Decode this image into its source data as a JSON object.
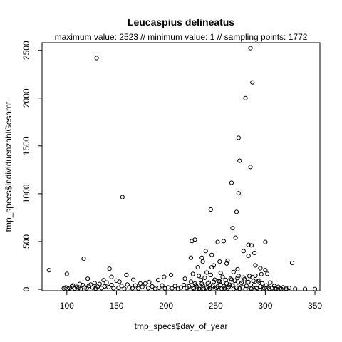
{
  "chart_data": {
    "type": "scatter",
    "title": "Leucaspius delineatus",
    "subtitle": "maximum value: 2523 // minimum value: 1 // sampling points: 1772",
    "xlabel": "tmp_specs$day_of_year",
    "ylabel": "tmp_specs$individuenzahlGesamt",
    "xlim": [
      75,
      355
    ],
    "ylim": [
      -15,
      2580
    ],
    "xticks": [
      100,
      150,
      200,
      250,
      300,
      350
    ],
    "yticks": [
      0,
      500,
      1000,
      1500,
      2000,
      2500
    ],
    "marker": "open-circle",
    "grid": false,
    "points": [
      [
        285,
        2523
      ],
      [
        130,
        2420
      ],
      [
        287,
        2165
      ],
      [
        280,
        2000
      ],
      [
        273,
        1585
      ],
      [
        274,
        1345
      ],
      [
        285,
        1280
      ],
      [
        266,
        1115
      ],
      [
        273,
        1005
      ],
      [
        156,
        965
      ],
      [
        271,
        810
      ],
      [
        245,
        835
      ],
      [
        267,
        640
      ],
      [
        270,
        540
      ],
      [
        229,
        520
      ],
      [
        226,
        505
      ],
      [
        252,
        495
      ],
      [
        300,
        495
      ],
      [
        283,
        465
      ],
      [
        286,
        460
      ],
      [
        258,
        505
      ],
      [
        237,
        290
      ],
      [
        246,
        360
      ],
      [
        261,
        270
      ],
      [
        289,
        380
      ],
      [
        117,
        320
      ],
      [
        82,
        200
      ],
      [
        143,
        215
      ],
      [
        236,
        330
      ],
      [
        225,
        330
      ],
      [
        327,
        275
      ],
      [
        232,
        230
      ],
      [
        240,
        400
      ],
      [
        246,
        230
      ],
      [
        254,
        290
      ],
      [
        262,
        300
      ],
      [
        278,
        400
      ],
      [
        283,
        350
      ],
      [
        290,
        250
      ],
      [
        295,
        220
      ],
      [
        300,
        200
      ],
      [
        268,
        180
      ],
      [
        272,
        210
      ],
      [
        255,
        170
      ],
      [
        248,
        250
      ],
      [
        241,
        175
      ],
      [
        233,
        140
      ],
      [
        227,
        160
      ],
      [
        219,
        110
      ],
      [
        205,
        150
      ],
      [
        198,
        130
      ],
      [
        192,
        95
      ],
      [
        183,
        75
      ],
      [
        174,
        60
      ],
      [
        167,
        100
      ],
      [
        160,
        150
      ],
      [
        153,
        80
      ],
      [
        145,
        130
      ],
      [
        137,
        95
      ],
      [
        128,
        65
      ],
      [
        121,
        110
      ],
      [
        113,
        55
      ],
      [
        106,
        40
      ],
      [
        100,
        160
      ],
      [
        97,
        10
      ],
      [
        99,
        20
      ],
      [
        101,
        5
      ],
      [
        103,
        12
      ],
      [
        105,
        30
      ],
      [
        108,
        8
      ],
      [
        110,
        25
      ],
      [
        112,
        15
      ],
      [
        114,
        3
      ],
      [
        116,
        45
      ],
      [
        118,
        20
      ],
      [
        120,
        10
      ],
      [
        122,
        35
      ],
      [
        124,
        50
      ],
      [
        126,
        18
      ],
      [
        129,
        7
      ],
      [
        131,
        28
      ],
      [
        133,
        55
      ],
      [
        135,
        12
      ],
      [
        138,
        30
      ],
      [
        140,
        70
      ],
      [
        142,
        22
      ],
      [
        145,
        45
      ],
      [
        147,
        10
      ],
      [
        150,
        90
      ],
      [
        152,
        15
      ],
      [
        155,
        35
      ],
      [
        158,
        5
      ],
      [
        161,
        50
      ],
      [
        163,
        20
      ],
      [
        166,
        10
      ],
      [
        169,
        40
      ],
      [
        172,
        8
      ],
      [
        176,
        25
      ],
      [
        179,
        60
      ],
      [
        182,
        12
      ],
      [
        186,
        30
      ],
      [
        189,
        5
      ],
      [
        193,
        15
      ],
      [
        196,
        40
      ],
      [
        199,
        8
      ],
      [
        202,
        20
      ],
      [
        206,
        10
      ],
      [
        209,
        35
      ],
      [
        212,
        5
      ],
      [
        215,
        18
      ],
      [
        218,
        45
      ],
      [
        221,
        12
      ],
      [
        223,
        30
      ],
      [
        225,
        80
      ],
      [
        227,
        15
      ],
      [
        229,
        60
      ],
      [
        231,
        25
      ],
      [
        233,
        5
      ],
      [
        235,
        95
      ],
      [
        237,
        40
      ],
      [
        239,
        120
      ],
      [
        241,
        20
      ],
      [
        243,
        70
      ],
      [
        245,
        150
      ],
      [
        247,
        35
      ],
      [
        249,
        100
      ],
      [
        251,
        15
      ],
      [
        253,
        85
      ],
      [
        255,
        45
      ],
      [
        257,
        130
      ],
      [
        259,
        10
      ],
      [
        261,
        60
      ],
      [
        263,
        25
      ],
      [
        265,
        110
      ],
      [
        267,
        40
      ],
      [
        269,
        90
      ],
      [
        271,
        15
      ],
      [
        273,
        140
      ],
      [
        275,
        55
      ],
      [
        277,
        20
      ],
      [
        279,
        105
      ],
      [
        281,
        35
      ],
      [
        283,
        75
      ],
      [
        285,
        10
      ],
      [
        287,
        125
      ],
      [
        289,
        45
      ],
      [
        291,
        15
      ],
      [
        293,
        85
      ],
      [
        295,
        30
      ],
      [
        297,
        60
      ],
      [
        299,
        10
      ],
      [
        301,
        40
      ],
      [
        303,
        20
      ],
      [
        305,
        70
      ],
      [
        307,
        12
      ],
      [
        309,
        35
      ],
      [
        311,
        5
      ],
      [
        313,
        25
      ],
      [
        315,
        10
      ],
      [
        318,
        20
      ],
      [
        321,
        6
      ],
      [
        324,
        15
      ],
      [
        330,
        4
      ],
      [
        340,
        3
      ],
      [
        350,
        2
      ],
      [
        238,
        5
      ],
      [
        244,
        8
      ],
      [
        250,
        3
      ],
      [
        256,
        6
      ],
      [
        262,
        9
      ],
      [
        268,
        4
      ],
      [
        274,
        7
      ],
      [
        280,
        2
      ],
      [
        286,
        5
      ],
      [
        292,
        8
      ],
      [
        298,
        3
      ],
      [
        304,
        6
      ],
      [
        310,
        9
      ],
      [
        316,
        4
      ],
      [
        228,
        7
      ],
      [
        234,
        2
      ],
      [
        240,
        12
      ],
      [
        246,
        18
      ],
      [
        252,
        28
      ],
      [
        258,
        32
      ],
      [
        264,
        48
      ],
      [
        270,
        52
      ],
      [
        276,
        68
      ],
      [
        282,
        72
      ],
      [
        288,
        88
      ],
      [
        294,
        92
      ],
      [
        230,
        42
      ],
      [
        236,
        58
      ],
      [
        242,
        62
      ],
      [
        248,
        78
      ],
      [
        254,
        82
      ],
      [
        260,
        98
      ],
      [
        266,
        102
      ],
      [
        272,
        118
      ],
      [
        278,
        122
      ],
      [
        284,
        138
      ],
      [
        290,
        142
      ],
      [
        296,
        158
      ],
      [
        302,
        162
      ]
    ]
  }
}
